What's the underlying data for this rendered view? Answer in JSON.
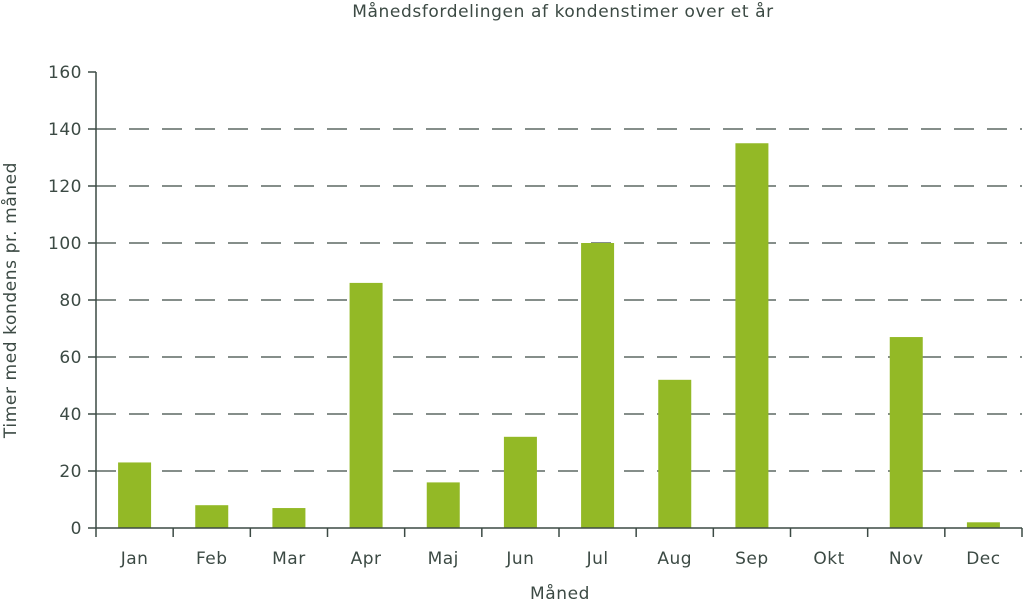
{
  "chart_data": {
    "type": "bar",
    "title": "Månedsfordelingen af kondenstimer over et år",
    "xlabel": "Måned",
    "ylabel": "Timer med kondens pr. måned",
    "categories": [
      "Jan",
      "Feb",
      "Mar",
      "Apr",
      "Maj",
      "Jun",
      "Jul",
      "Aug",
      "Sep",
      "Okt",
      "Nov",
      "Dec"
    ],
    "values": [
      23,
      8,
      7,
      86,
      16,
      32,
      100,
      52,
      135,
      0,
      67,
      2
    ],
    "ylim": [
      0,
      160
    ],
    "yticks": [
      0,
      20,
      40,
      60,
      80,
      100,
      120,
      140,
      160
    ],
    "ytick_labels": [
      "0",
      "20",
      "40",
      "60",
      "80",
      "100",
      "120",
      "140",
      "160"
    ],
    "grid": "horizontal dashed",
    "bar_color": "#93b926",
    "axis_color": "#3c4a44",
    "grid_color": "#3c4a44"
  }
}
